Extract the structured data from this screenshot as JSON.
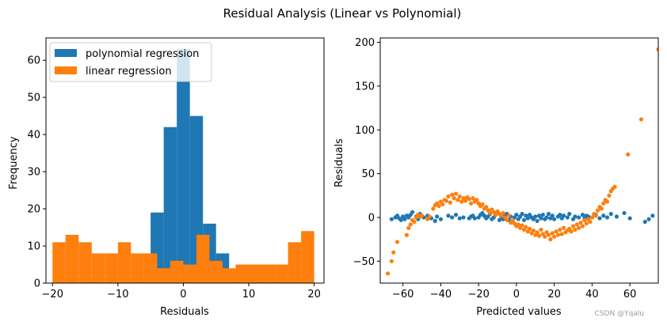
{
  "figure": {
    "title": "Residual Analysis (Linear vs Polynomial)",
    "watermark": "CSDN @Yqalu"
  },
  "colors": {
    "polynomial": "#1f77b4",
    "linear": "#ff7f0e"
  },
  "chart_data": [
    {
      "type": "bar",
      "subtype": "histogram",
      "xlabel": "Residuals",
      "ylabel": "Frequency",
      "xlim": [
        -21,
        21.5
      ],
      "ylim": [
        0,
        66
      ],
      "xticks": [
        -20,
        -10,
        0,
        10,
        20
      ],
      "yticks": [
        0,
        10,
        20,
        30,
        40,
        50,
        60
      ],
      "legend_position": "top-left",
      "series": [
        {
          "name": "polynomial regression",
          "color_key": "polynomial",
          "bin_edges": [
            -5,
            -3,
            -1,
            1,
            3,
            5,
            7
          ],
          "counts": [
            19,
            42,
            63,
            45,
            16,
            8
          ]
        },
        {
          "name": "linear regression",
          "color_key": "linear",
          "bin_edges": [
            -20,
            -18,
            -16,
            -14,
            -12,
            -10,
            -8,
            -6,
            -4,
            -2,
            0,
            2,
            4,
            6,
            8,
            10,
            12,
            14,
            16,
            18,
            20
          ],
          "counts": [
            11,
            13,
            11,
            8,
            8,
            11,
            8,
            8,
            4,
            6,
            5,
            13,
            6,
            4,
            5,
            5,
            5,
            5,
            11,
            14
          ]
        }
      ]
    },
    {
      "type": "scatter",
      "xlabel": "Predicted values",
      "ylabel": "Residuals",
      "xlim": [
        -72,
        75
      ],
      "ylim": [
        -75,
        205
      ],
      "xticks": [
        -60,
        -40,
        -20,
        0,
        20,
        40,
        60
      ],
      "yticks": [
        -50,
        0,
        50,
        100,
        150,
        200
      ],
      "series": [
        {
          "color_key": "polynomial",
          "points": [
            [
              -66,
              -2
            ],
            [
              -64,
              0
            ],
            [
              -63,
              2
            ],
            [
              -62,
              -1
            ],
            [
              -61,
              -3
            ],
            [
              -60,
              1
            ],
            [
              -59,
              -2
            ],
            [
              -58,
              2
            ],
            [
              -57,
              0
            ],
            [
              -56,
              3
            ],
            [
              -55,
              6
            ],
            [
              -53,
              1
            ],
            [
              -52,
              -2
            ],
            [
              -51,
              4
            ],
            [
              -49,
              0
            ],
            [
              -47,
              2
            ],
            [
              -45,
              -1
            ],
            [
              -43,
              -4
            ],
            [
              -42,
              1
            ],
            [
              -40,
              -2
            ],
            [
              -36,
              2
            ],
            [
              -34,
              0
            ],
            [
              -32,
              3
            ],
            [
              -30,
              -1
            ],
            [
              -28,
              0
            ],
            [
              -25,
              -1
            ],
            [
              -24,
              1
            ],
            [
              -23,
              2
            ],
            [
              -22,
              -1
            ],
            [
              -20,
              0
            ],
            [
              -19,
              3
            ],
            [
              -18,
              5
            ],
            [
              -17,
              2
            ],
            [
              -16,
              -1
            ],
            [
              -15,
              1
            ],
            [
              -14,
              4
            ],
            [
              -13,
              -2
            ],
            [
              -12,
              0
            ],
            [
              -11,
              3
            ],
            [
              -10,
              6
            ],
            [
              -9,
              -3
            ],
            [
              -8,
              1
            ],
            [
              -7,
              -2
            ],
            [
              -6,
              2
            ],
            [
              -5,
              4
            ],
            [
              -4,
              -3
            ],
            [
              -3,
              1
            ],
            [
              -2,
              -4
            ],
            [
              -1,
              0
            ],
            [
              0,
              3
            ],
            [
              1,
              -2
            ],
            [
              2,
              1
            ],
            [
              3,
              4
            ],
            [
              4,
              -3
            ],
            [
              5,
              2
            ],
            [
              6,
              -1
            ],
            [
              7,
              3
            ],
            [
              8,
              0
            ],
            [
              9,
              -2
            ],
            [
              10,
              1
            ],
            [
              11,
              -4
            ],
            [
              12,
              2
            ],
            [
              13,
              -1
            ],
            [
              14,
              3
            ],
            [
              15,
              -2
            ],
            [
              16,
              0
            ],
            [
              17,
              4
            ],
            [
              18,
              -1
            ],
            [
              19,
              2
            ],
            [
              20,
              -2
            ],
            [
              22,
              1
            ],
            [
              23,
              3
            ],
            [
              24,
              -1
            ],
            [
              25,
              2
            ],
            [
              27,
              0
            ],
            [
              28,
              4
            ],
            [
              30,
              -2
            ],
            [
              31,
              1
            ],
            [
              33,
              0
            ],
            [
              35,
              3
            ],
            [
              36,
              -1
            ],
            [
              37,
              2
            ],
            [
              38,
              1
            ],
            [
              40,
              0
            ],
            [
              42,
              3
            ],
            [
              44,
              -1
            ],
            [
              46,
              2
            ],
            [
              48,
              0
            ],
            [
              50,
              4
            ],
            [
              53,
              1
            ],
            [
              57,
              5
            ],
            [
              60,
              -1
            ],
            [
              68,
              -5
            ],
            [
              70,
              -2
            ],
            [
              72,
              2
            ]
          ]
        },
        {
          "color_key": "linear",
          "points": [
            [
              -68,
              -64
            ],
            [
              -66,
              -50
            ],
            [
              -65,
              -40
            ],
            [
              -63,
              -28
            ],
            [
              -58,
              -20
            ],
            [
              -57,
              -12
            ],
            [
              -56,
              -8
            ],
            [
              -55,
              -3
            ],
            [
              -54,
              -5
            ],
            [
              -53,
              0
            ],
            [
              -52,
              3
            ],
            [
              -51,
              1
            ],
            [
              -50,
              2
            ],
            [
              -47,
              -2
            ],
            [
              -46,
              1
            ],
            [
              -44,
              10
            ],
            [
              -43,
              14
            ],
            [
              -42,
              16
            ],
            [
              -41,
              13
            ],
            [
              -40,
              18
            ],
            [
              -39,
              15
            ],
            [
              -38,
              20
            ],
            [
              -37,
              19
            ],
            [
              -36,
              24
            ],
            [
              -35,
              17
            ],
            [
              -34,
              26
            ],
            [
              -33,
              22
            ],
            [
              -32,
              27
            ],
            [
              -31,
              20
            ],
            [
              -30,
              24
            ],
            [
              -29,
              18
            ],
            [
              -28,
              22
            ],
            [
              -27,
              19
            ],
            [
              -26,
              23
            ],
            [
              -25,
              21
            ],
            [
              -24,
              16
            ],
            [
              -23,
              22
            ],
            [
              -22,
              18
            ],
            [
              -21,
              20
            ],
            [
              -20,
              16
            ],
            [
              -19,
              13
            ],
            [
              -18,
              15
            ],
            [
              -17,
              10
            ],
            [
              -16,
              12
            ],
            [
              -15,
              8
            ],
            [
              -14,
              5
            ],
            [
              -13,
              9
            ],
            [
              -12,
              6
            ],
            [
              -11,
              3
            ],
            [
              -10,
              7
            ],
            [
              -9,
              4
            ],
            [
              -8,
              2
            ],
            [
              -7,
              5
            ],
            [
              -6,
              0
            ],
            [
              -5,
              -3
            ],
            [
              -4,
              2
            ],
            [
              -3,
              -6
            ],
            [
              -2,
              -4
            ],
            [
              -1,
              -7
            ],
            [
              0,
              -10
            ],
            [
              1,
              -8
            ],
            [
              2,
              -12
            ],
            [
              3,
              -9
            ],
            [
              4,
              -14
            ],
            [
              5,
              -11
            ],
            [
              6,
              -16
            ],
            [
              7,
              -13
            ],
            [
              8,
              -18
            ],
            [
              9,
              -15
            ],
            [
              10,
              -20
            ],
            [
              11,
              -17
            ],
            [
              12,
              -21
            ],
            [
              13,
              -14
            ],
            [
              14,
              -19
            ],
            [
              15,
              -22
            ],
            [
              16,
              -17
            ],
            [
              17,
              -20
            ],
            [
              18,
              -25
            ],
            [
              19,
              -18
            ],
            [
              20,
              -22
            ],
            [
              21,
              -16
            ],
            [
              22,
              -20
            ],
            [
              23,
              -14
            ],
            [
              24,
              -19
            ],
            [
              25,
              -12
            ],
            [
              26,
              -17
            ],
            [
              27,
              -15
            ],
            [
              28,
              -13
            ],
            [
              29,
              -16
            ],
            [
              30,
              -10
            ],
            [
              31,
              -14
            ],
            [
              32,
              -8
            ],
            [
              33,
              -12
            ],
            [
              34,
              -6
            ],
            [
              35,
              -10
            ],
            [
              36,
              -3
            ],
            [
              37,
              -7
            ],
            [
              38,
              -2
            ],
            [
              39,
              -5
            ],
            [
              40,
              0
            ],
            [
              41,
              4
            ],
            [
              42,
              2
            ],
            [
              43,
              8
            ],
            [
              44,
              12
            ],
            [
              45,
              10
            ],
            [
              46,
              16
            ],
            [
              47,
              20
            ],
            [
              48,
              18
            ],
            [
              49,
              25
            ],
            [
              50,
              30
            ],
            [
              51,
              33
            ],
            [
              52,
              35
            ],
            [
              59,
              72
            ],
            [
              66,
              112
            ],
            [
              75,
              192
            ]
          ]
        }
      ]
    }
  ]
}
